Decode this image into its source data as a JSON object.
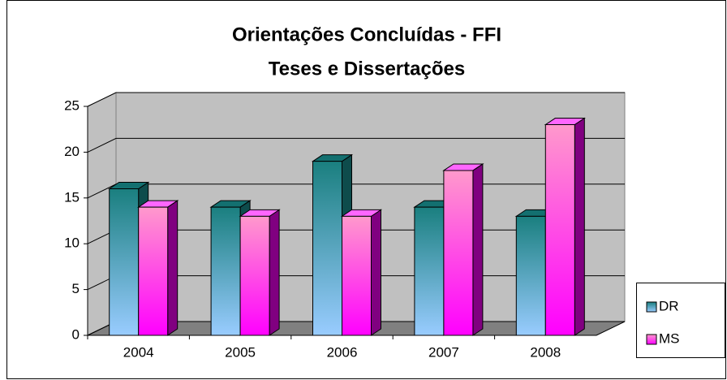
{
  "chart_data": {
    "type": "bar",
    "title": "Orientações Concluídas - FFI",
    "subtitle": "Teses e Dissertações",
    "categories": [
      "2004",
      "2005",
      "2006",
      "2007",
      "2008"
    ],
    "series": [
      {
        "name": "DR",
        "color": "#1a7f7f",
        "values": [
          16,
          14,
          19,
          14,
          13
        ]
      },
      {
        "name": "MS",
        "color": "#ff00ff",
        "values": [
          14,
          13,
          13,
          18,
          23
        ]
      }
    ],
    "ylim": [
      0,
      25
    ],
    "yticks": [
      0,
      5,
      10,
      15,
      20,
      25
    ],
    "grid": true,
    "legend": "right"
  }
}
